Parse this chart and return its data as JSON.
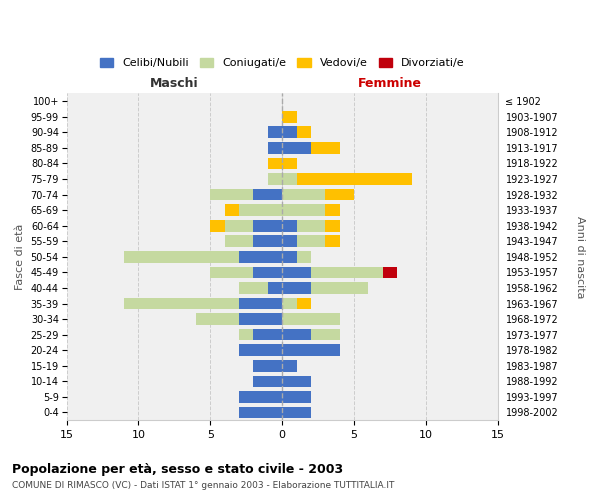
{
  "age_groups_bottom_to_top": [
    "0-4",
    "5-9",
    "10-14",
    "15-19",
    "20-24",
    "25-29",
    "30-34",
    "35-39",
    "40-44",
    "45-49",
    "50-54",
    "55-59",
    "60-64",
    "65-69",
    "70-74",
    "75-79",
    "80-84",
    "85-89",
    "90-94",
    "95-99",
    "100+"
  ],
  "birth_years_bottom_to_top": [
    "1998-2002",
    "1993-1997",
    "1988-1992",
    "1983-1987",
    "1978-1982",
    "1973-1977",
    "1968-1972",
    "1963-1967",
    "1958-1962",
    "1953-1957",
    "1948-1952",
    "1943-1947",
    "1938-1942",
    "1933-1937",
    "1928-1932",
    "1923-1927",
    "1918-1922",
    "1913-1917",
    "1908-1912",
    "1903-1907",
    "≤ 1902"
  ],
  "males": {
    "celibi": [
      3,
      3,
      2,
      2,
      3,
      2,
      3,
      3,
      1,
      2,
      3,
      2,
      2,
      0,
      2,
      0,
      0,
      1,
      1,
      0,
      0
    ],
    "coniugati": [
      0,
      0,
      0,
      0,
      0,
      1,
      3,
      8,
      2,
      3,
      8,
      2,
      2,
      3,
      3,
      1,
      0,
      0,
      0,
      0,
      0
    ],
    "vedovi": [
      0,
      0,
      0,
      0,
      0,
      0,
      0,
      0,
      0,
      0,
      0,
      0,
      1,
      1,
      0,
      0,
      1,
      0,
      0,
      0,
      0
    ],
    "divorziati": [
      0,
      0,
      0,
      0,
      0,
      0,
      0,
      0,
      0,
      0,
      0,
      0,
      0,
      0,
      0,
      0,
      0,
      0,
      0,
      0,
      0
    ]
  },
  "females": {
    "celibi": [
      2,
      2,
      2,
      1,
      4,
      2,
      0,
      0,
      2,
      2,
      1,
      1,
      1,
      0,
      0,
      0,
      0,
      2,
      1,
      0,
      0
    ],
    "coniugati": [
      0,
      0,
      0,
      0,
      0,
      2,
      4,
      1,
      4,
      5,
      1,
      2,
      2,
      3,
      3,
      1,
      0,
      0,
      0,
      0,
      0
    ],
    "vedovi": [
      0,
      0,
      0,
      0,
      0,
      0,
      0,
      1,
      0,
      0,
      0,
      1,
      1,
      1,
      2,
      8,
      1,
      2,
      1,
      1,
      0
    ],
    "divorziati": [
      0,
      0,
      0,
      0,
      0,
      0,
      0,
      0,
      0,
      1,
      0,
      0,
      0,
      0,
      0,
      0,
      0,
      0,
      0,
      0,
      0
    ]
  },
  "colors": {
    "celibi": "#4472C4",
    "coniugati": "#C5D9A0",
    "vedovi": "#FFC000",
    "divorziati": "#C0000C"
  },
  "xlim": [
    -15,
    15
  ],
  "xlabel_left": "Maschi",
  "xlabel_right": "Femmine",
  "ylabel_left": "Fasce di età",
  "ylabel_right": "Anni di nascita",
  "title": "Popolazione per età, sesso e stato civile - 2003",
  "subtitle": "COMUNE DI RIMASCO (VC) - Dati ISTAT 1° gennaio 2003 - Elaborazione TUTTITALIA.IT",
  "legend_labels": [
    "Celibi/Nubili",
    "Coniugati/e",
    "Vedovi/e",
    "Divorziati/e"
  ],
  "bg_color": "#ffffff",
  "plot_bg_color": "#f0f0f0",
  "grid_color": "#cccccc",
  "xticks": [
    -15,
    -10,
    -5,
    0,
    5,
    10,
    15
  ],
  "xtick_labels": [
    "15",
    "10",
    "5",
    "0",
    "5",
    "10",
    "15"
  ]
}
